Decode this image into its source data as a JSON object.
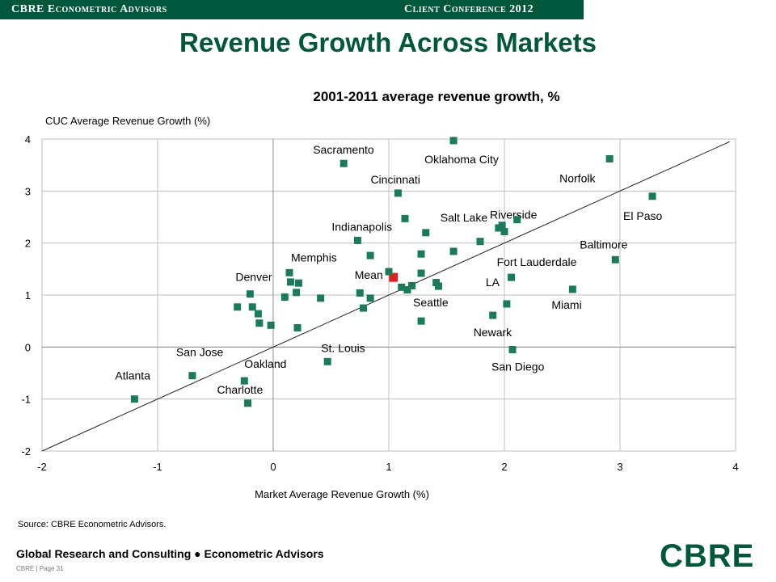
{
  "header": {
    "org": "CBRE Econometric Advisors",
    "conference": "Client Conference 2012"
  },
  "slide_title": "Revenue Growth Across Markets",
  "source": "Source: CBRE Econometric Advisors.",
  "footer": "Global Research and Consulting ● Econometric Advisors",
  "page_number": "CBRE | Page 31",
  "logo_text": "CBRE",
  "colors": {
    "brand_green": "#00573c",
    "marker": "#1a7a5a",
    "mean_marker": "#e02020"
  },
  "chart_data": {
    "type": "scatter",
    "title": "2001-2011 average revenue growth, %",
    "xlabel": "Market Average Revenue Growth (%)",
    "ylabel": "CUC Average Revenue Growth (%)",
    "xlim": [
      -2,
      4
    ],
    "ylim": [
      -2,
      4
    ],
    "xticks": [
      -2,
      -1,
      0,
      1,
      2,
      3,
      4
    ],
    "yticks": [
      -2,
      -1,
      0,
      1,
      2,
      3,
      4
    ],
    "grid": true,
    "diagonal_line": true,
    "points": [
      {
        "x": -1.2,
        "y": -1.0,
        "label": "Atlanta"
      },
      {
        "x": -0.7,
        "y": -0.55,
        "label": "San Jose"
      },
      {
        "x": -0.25,
        "y": -0.65,
        "label": "Oakland"
      },
      {
        "x": -0.22,
        "y": -1.08,
        "label": "Charlotte"
      },
      {
        "x": 0.47,
        "y": -0.28,
        "label": "St. Louis"
      },
      {
        "x": -0.2,
        "y": 1.02,
        "label": "Denver"
      },
      {
        "x": 0.14,
        "y": 1.43,
        "label": "Memphis"
      },
      {
        "x": 0.61,
        "y": 3.53,
        "label": "Sacramento"
      },
      {
        "x": 1.56,
        "y": 3.97,
        "label": "Oklahoma City"
      },
      {
        "x": 1.08,
        "y": 2.96,
        "label": "Cincinnati"
      },
      {
        "x": 2.91,
        "y": 3.62,
        "label": "Norfolk"
      },
      {
        "x": 3.28,
        "y": 2.9,
        "label": "El Paso"
      },
      {
        "x": 0.73,
        "y": 2.05,
        "label": "Indianapolis"
      },
      {
        "x": 1.32,
        "y": 2.2,
        "label": "Salt Lake"
      },
      {
        "x": 2.0,
        "y": 2.22,
        "label": "Riverside"
      },
      {
        "x": 2.96,
        "y": 1.68,
        "label": "Baltimore"
      },
      {
        "x": 2.06,
        "y": 1.34,
        "label": "Fort Lauderdale"
      },
      {
        "x": 1.04,
        "y": 1.34,
        "label": "Mean",
        "highlight": true
      },
      {
        "x": 2.02,
        "y": 0.83,
        "label": "LA"
      },
      {
        "x": 2.59,
        "y": 1.11,
        "label": "Miami"
      },
      {
        "x": 1.28,
        "y": 0.5,
        "label": "Seattle"
      },
      {
        "x": 1.9,
        "y": 0.61,
        "label": "Newark"
      },
      {
        "x": 2.07,
        "y": -0.05,
        "label": "San Diego"
      },
      {
        "x": -0.31,
        "y": 0.77
      },
      {
        "x": -0.18,
        "y": 0.77
      },
      {
        "x": -0.13,
        "y": 0.64
      },
      {
        "x": -0.12,
        "y": 0.46
      },
      {
        "x": -0.02,
        "y": 0.42
      },
      {
        "x": 0.1,
        "y": 0.96
      },
      {
        "x": 0.15,
        "y": 1.25
      },
      {
        "x": 0.2,
        "y": 1.05
      },
      {
        "x": 0.22,
        "y": 1.23
      },
      {
        "x": 0.21,
        "y": 0.37
      },
      {
        "x": 0.41,
        "y": 0.94
      },
      {
        "x": 0.75,
        "y": 1.04
      },
      {
        "x": 0.78,
        "y": 0.75
      },
      {
        "x": 0.84,
        "y": 0.94
      },
      {
        "x": 0.84,
        "y": 1.76
      },
      {
        "x": 1.0,
        "y": 1.45
      },
      {
        "x": 1.11,
        "y": 1.15
      },
      {
        "x": 1.14,
        "y": 2.47
      },
      {
        "x": 1.16,
        "y": 1.1
      },
      {
        "x": 1.2,
        "y": 1.18
      },
      {
        "x": 1.28,
        "y": 1.79
      },
      {
        "x": 1.28,
        "y": 1.42
      },
      {
        "x": 1.41,
        "y": 1.24
      },
      {
        "x": 1.43,
        "y": 1.17
      },
      {
        "x": 1.56,
        "y": 1.84
      },
      {
        "x": 1.79,
        "y": 2.03
      },
      {
        "x": 1.95,
        "y": 2.29
      },
      {
        "x": 1.98,
        "y": 2.34
      },
      {
        "x": 2.11,
        "y": 2.45
      }
    ]
  }
}
